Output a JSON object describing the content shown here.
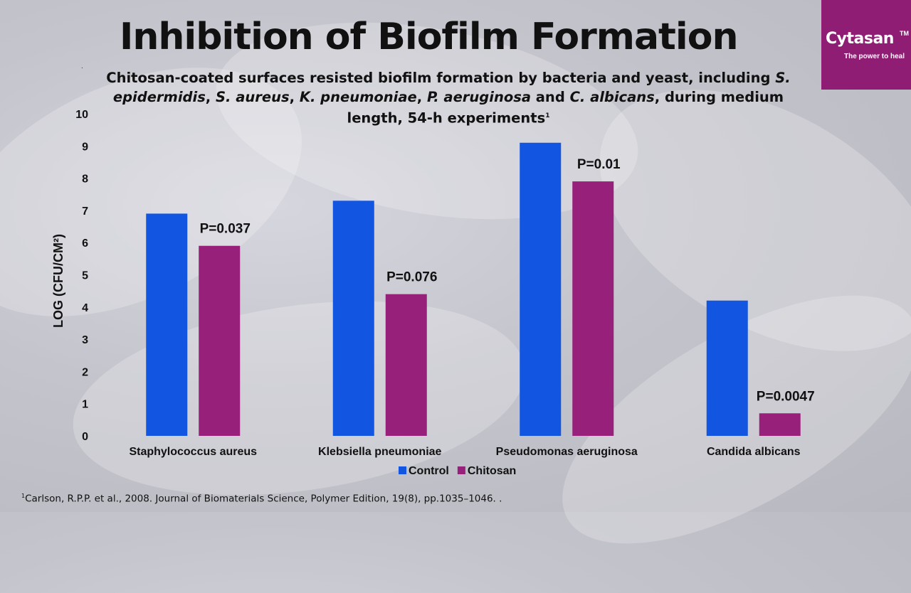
{
  "slide": {
    "title": "Inhibition of Biofilm Formation",
    "dot": ".",
    "subtitle_pre": "Chitosan-coated surfaces resisted biofilm formation by bacteria and yeast, including ",
    "subtitle_sp1": "S. epidermidis",
    "subtitle_sep1": ", ",
    "subtitle_sp2": "S. aureus",
    "subtitle_sep2": ", ",
    "subtitle_sp3": "K. pneumoniae",
    "subtitle_sep3": ", ",
    "subtitle_sp4": "P. aeruginosa",
    "subtitle_sep4": " and ",
    "subtitle_sp5": "C. albicans",
    "subtitle_post": ", during medium length, 54-h experiments",
    "subtitle_ref": "1",
    "footnote_ref": "1",
    "footnote": "Carlson, R.P.P. et al., 2008. Journal of Biomaterials Science, Polymer Edition, 19(8), pp.1035–1046. ."
  },
  "logo": {
    "name": "Cytasan",
    "tm": "TM",
    "tagline": "The power to heal",
    "color": "#8f1d74"
  },
  "chart_data": {
    "type": "bar",
    "categories": [
      "Staphylococcus aureus",
      "Klebsiella pneumoniae",
      "Pseudomonas aeruginosa",
      "Candida albicans"
    ],
    "series": [
      {
        "name": "Control",
        "values": [
          6.9,
          7.3,
          9.1,
          4.2
        ],
        "color": "#1155e0"
      },
      {
        "name": "Chitosan",
        "values": [
          5.9,
          4.4,
          7.9,
          0.7
        ],
        "color": "#96207a"
      }
    ],
    "annotations": [
      "P=0.037",
      "P=0.076",
      "P=0.01",
      "P=0.0047"
    ],
    "ylabel": "LOG (CFU/CM²)",
    "ylim": [
      0,
      10
    ],
    "yticks": [
      0,
      1,
      2,
      3,
      4,
      5,
      6,
      7,
      8,
      9,
      10
    ],
    "grid": false,
    "legend_position": "bottom"
  }
}
